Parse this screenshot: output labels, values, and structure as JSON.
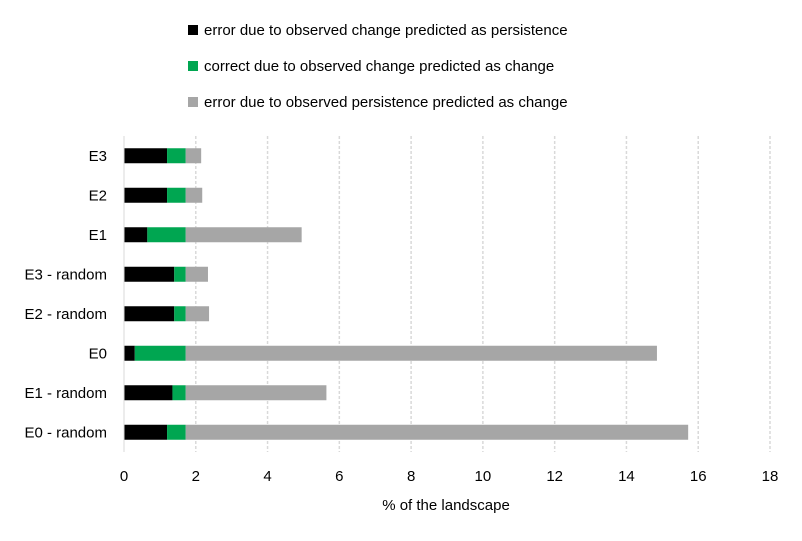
{
  "chart_data": {
    "type": "bar",
    "orientation": "horizontal",
    "stacked": true,
    "title": "",
    "xlabel": "% of the landscape",
    "ylabel": "",
    "xlim": [
      0,
      18
    ],
    "xticks": [
      0,
      2,
      4,
      6,
      8,
      10,
      12,
      14,
      16,
      18
    ],
    "grid": "vertical",
    "legend_position": "top",
    "categories": [
      "E3",
      "E2",
      "E1",
      "E3 - random",
      "E2 - random",
      "E0",
      "E1 - random",
      "E0 - random"
    ],
    "series": [
      {
        "name": "error due to observed change predicted as persistence",
        "color": "#000000",
        "values": [
          1.2,
          1.2,
          0.65,
          1.4,
          1.4,
          0.3,
          1.35,
          1.2
        ]
      },
      {
        "name": "correct due to observed change predicted as change",
        "color": "#00a651",
        "values": [
          0.52,
          0.52,
          1.07,
          0.32,
          0.32,
          1.42,
          0.37,
          0.52
        ]
      },
      {
        "name": "error due to observed persistence predicted as change",
        "color": "#a6a6a6",
        "values": [
          0.43,
          0.46,
          3.23,
          0.62,
          0.65,
          13.13,
          3.92,
          14.0
        ]
      }
    ]
  }
}
